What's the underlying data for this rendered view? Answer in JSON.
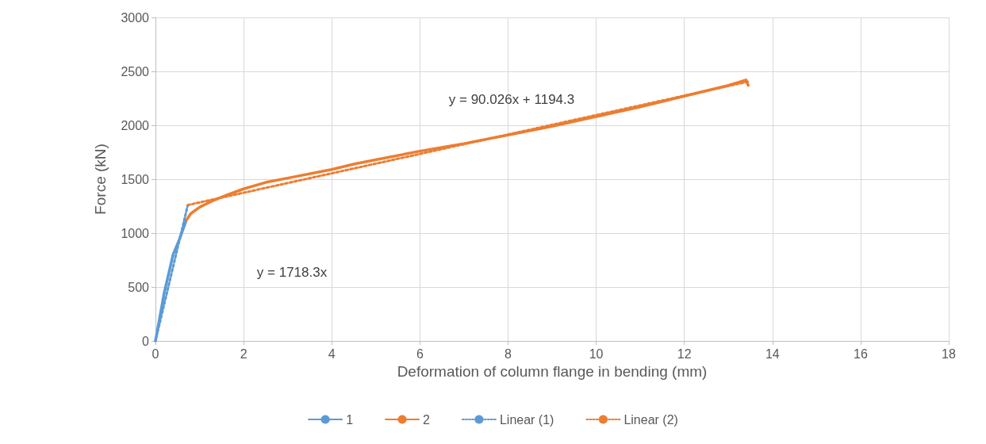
{
  "chart_data": {
    "type": "line",
    "xlabel": "Deformation of column flange in bending (mm)",
    "ylabel": "Force (kN)",
    "xlim": [
      0,
      18
    ],
    "xticks": [
      0,
      2,
      4,
      6,
      8,
      10,
      12,
      14,
      16,
      18
    ],
    "ylim": [
      0,
      3000
    ],
    "yticks": [
      0,
      500,
      1000,
      1500,
      2000,
      2500,
      3000
    ],
    "grid": true,
    "legend": "bottom",
    "marker": "none",
    "series": [
      {
        "name": "1",
        "color": "#5b9bd5",
        "line_style": "solid",
        "x": [
          0,
          0.2,
          0.4,
          0.55,
          0.7
        ],
        "values": [
          0,
          450,
          800,
          950,
          1120
        ]
      },
      {
        "name": "2",
        "color": "#ed7d31",
        "line_style": "solid",
        "x": [
          0.7,
          0.8,
          1,
          1.3,
          1.6,
          2,
          2.5,
          3,
          4,
          4.5,
          5,
          6,
          7,
          8,
          9,
          10,
          11,
          12,
          13,
          13.4,
          13.45
        ],
        "values": [
          1120,
          1180,
          1240,
          1300,
          1350,
          1410,
          1470,
          1510,
          1590,
          1640,
          1680,
          1760,
          1830,
          1910,
          1990,
          2080,
          2170,
          2270,
          2370,
          2420,
          2370
        ]
      },
      {
        "name": "Linear (1)",
        "color": "#5b9bd5",
        "line_style": "dotted",
        "x": [
          0,
          0.73
        ],
        "values": [
          0,
          1254
        ]
      },
      {
        "name": "Linear (2)",
        "color": "#ed7d31",
        "line_style": "dotted",
        "x": [
          0.73,
          13.45
        ],
        "values": [
          1260,
          2405
        ]
      }
    ],
    "annotations": [
      "y = 90.026x + 1194.3",
      "y = 1718.3x"
    ]
  }
}
